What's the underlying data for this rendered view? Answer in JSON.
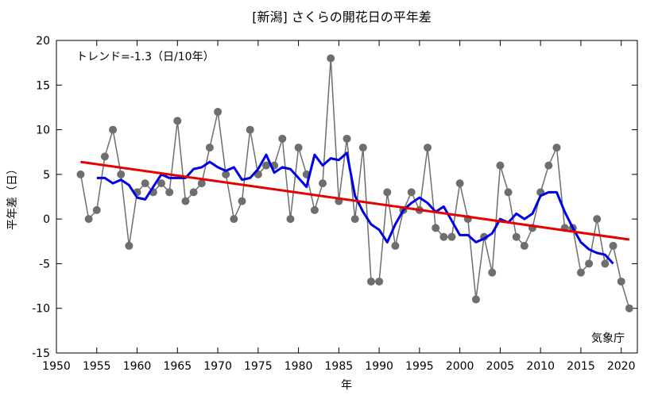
{
  "chart_data": {
    "type": "line",
    "title": "[新潟] さくらの開花日の平年差",
    "xlabel": "年",
    "ylabel": "平年差（日）",
    "xlim": [
      1950,
      2022
    ],
    "ylim": [
      -15,
      20
    ],
    "xticks": [
      1950,
      1955,
      1960,
      1965,
      1970,
      1975,
      1980,
      1985,
      1990,
      1995,
      2000,
      2005,
      2010,
      2015,
      2020
    ],
    "yticks": [
      -15,
      -10,
      -5,
      0,
      5,
      10,
      15,
      20
    ],
    "trend_text": "トレンド=-1.3（日/10年）",
    "source_text": "気象庁",
    "grid": false,
    "colors": {
      "annual": "#6e6e6e",
      "moving_average": "#0000e6",
      "trend": "#e60000"
    },
    "series": [
      {
        "key": "annual",
        "x": [
          1953,
          1954,
          1955,
          1956,
          1957,
          1958,
          1959,
          1960,
          1961,
          1962,
          1963,
          1964,
          1965,
          1966,
          1967,
          1968,
          1969,
          1970,
          1971,
          1972,
          1973,
          1974,
          1975,
          1976,
          1977,
          1978,
          1979,
          1980,
          1981,
          1982,
          1983,
          1984,
          1985,
          1986,
          1987,
          1988,
          1989,
          1990,
          1991,
          1992,
          1993,
          1994,
          1995,
          1996,
          1997,
          1998,
          1999,
          2000,
          2001,
          2002,
          2003,
          2004,
          2005,
          2006,
          2007,
          2008,
          2009,
          2010,
          2011,
          2012,
          2013,
          2014,
          2015,
          2016,
          2017,
          2018,
          2019,
          2020,
          2021
        ],
        "values": [
          5,
          0,
          1,
          7,
          10,
          5,
          -3,
          3,
          4,
          3,
          4,
          3,
          11,
          2,
          3,
          4,
          8,
          12,
          5,
          0,
          2,
          10,
          5,
          6,
          6,
          9,
          0,
          8,
          5,
          1,
          4,
          18,
          2,
          9,
          0,
          8,
          -7,
          -7,
          3,
          -3,
          1,
          3,
          1,
          8,
          -1,
          -2,
          -2,
          4,
          0,
          -9,
          -2,
          -6,
          6,
          3,
          -2,
          -3,
          -1,
          3,
          6,
          8,
          -1,
          -1,
          -6,
          -5,
          0,
          -5,
          -3,
          -7,
          -10
        ]
      },
      {
        "key": "moving_average",
        "x": [
          1955,
          1956,
          1957,
          1958,
          1959,
          1960,
          1961,
          1962,
          1963,
          1964,
          1965,
          1966,
          1967,
          1968,
          1969,
          1970,
          1971,
          1972,
          1973,
          1974,
          1975,
          1976,
          1977,
          1978,
          1979,
          1980,
          1981,
          1982,
          1983,
          1984,
          1985,
          1986,
          1987,
          1988,
          1989,
          1990,
          1991,
          1992,
          1993,
          1994,
          1995,
          1996,
          1997,
          1998,
          1999,
          2000,
          2001,
          2002,
          2003,
          2004,
          2005,
          2006,
          2007,
          2008,
          2009,
          2010,
          2011,
          2012,
          2013,
          2014,
          2015,
          2016,
          2017,
          2018,
          2019
        ],
        "values": [
          4.6,
          4.6,
          4.0,
          4.4,
          3.8,
          2.4,
          2.2,
          3.6,
          5.0,
          4.6,
          4.6,
          4.6,
          5.6,
          5.8,
          6.4,
          5.8,
          5.4,
          5.8,
          4.4,
          4.6,
          5.6,
          7.2,
          5.2,
          5.8,
          5.6,
          4.6,
          3.6,
          7.2,
          6.0,
          6.8,
          6.6,
          7.4,
          2.6,
          0.8,
          -0.6,
          -1.2,
          -2.6,
          -0.6,
          1.0,
          1.8,
          2.4,
          1.8,
          0.8,
          1.4,
          -0.2,
          -1.8,
          -1.8,
          -2.6,
          -2.2,
          -1.6,
          0.0,
          -0.4,
          0.6,
          0.0,
          0.6,
          2.6,
          3.0,
          3.0,
          0.8,
          -1.0,
          -2.6,
          -3.4,
          -3.8,
          -4.0,
          -5.0
        ]
      },
      {
        "key": "trend",
        "x": [
          1953,
          2021
        ],
        "values": [
          6.4,
          -2.3
        ]
      }
    ]
  }
}
